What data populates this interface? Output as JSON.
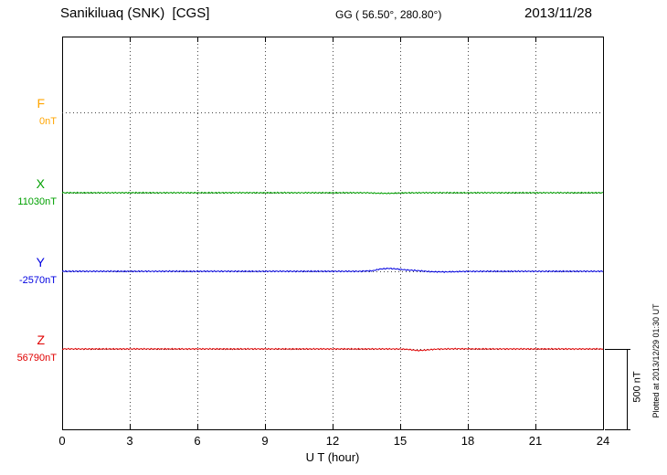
{
  "header": {
    "station_title": "Sanikiluaq (SNK)  [CGS]",
    "coords_label": "GG ( 56.50°, 280.80°)",
    "date": "2013/11/28"
  },
  "axes": {
    "x_label": "U T (hour)",
    "x_ticks": [
      0,
      3,
      6,
      9,
      12,
      15,
      18,
      21,
      24
    ]
  },
  "scale_bar": {
    "label": "500 nT",
    "value_nT": 500
  },
  "footer_note": "Plotted at 2013/12/29 01:30 UT",
  "chart_data": {
    "type": "line",
    "title": "Sanikiluaq (SNK) [CGS] magnetogram",
    "date": "2013/11/28",
    "xlabel": "U T (hour)",
    "x_range": [
      0,
      24
    ],
    "x_ticks": [
      0,
      3,
      6,
      9,
      12,
      15,
      18,
      21,
      24
    ],
    "scale_division_nT": 500,
    "grid": "dotted vertical lines every 3 hours, dotted horizontal baseline per trace",
    "series": [
      {
        "name": "F",
        "color": "#ffa500",
        "baseline_label": "0nT",
        "baseline_nT": 0,
        "trace_visible": false,
        "points": [
          [
            0,
            0
          ],
          [
            24,
            0
          ]
        ]
      },
      {
        "name": "X",
        "color": "#00a000",
        "baseline_label": "11030nT",
        "baseline_nT": 11030,
        "trace_visible": true,
        "points": [
          [
            0,
            11030
          ],
          [
            13.5,
            11030
          ],
          [
            14.0,
            11027
          ],
          [
            14.5,
            11026
          ],
          [
            15.0,
            11029
          ],
          [
            16.0,
            11030
          ],
          [
            24,
            11030
          ]
        ]
      },
      {
        "name": "Y",
        "color": "#0000e0",
        "baseline_label": "-2570nT",
        "baseline_nT": -2570,
        "trace_visible": true,
        "points": [
          [
            0,
            -2570
          ],
          [
            13.2,
            -2570
          ],
          [
            13.8,
            -2566
          ],
          [
            14.1,
            -2556
          ],
          [
            14.5,
            -2552
          ],
          [
            14.9,
            -2556
          ],
          [
            15.3,
            -2562
          ],
          [
            15.8,
            -2566
          ],
          [
            16.3,
            -2572
          ],
          [
            17.0,
            -2574
          ],
          [
            17.8,
            -2571
          ],
          [
            19.0,
            -2570
          ],
          [
            24,
            -2570
          ]
        ]
      },
      {
        "name": "Z",
        "color": "#e00000",
        "baseline_label": "56790nT",
        "baseline_nT": 56790,
        "trace_visible": true,
        "points": [
          [
            0,
            56790
          ],
          [
            14.8,
            56790
          ],
          [
            15.3,
            56788
          ],
          [
            15.8,
            56780
          ],
          [
            16.2,
            56784
          ],
          [
            16.6,
            56789
          ],
          [
            17.5,
            56791
          ],
          [
            18.5,
            56790
          ],
          [
            24,
            56790
          ]
        ]
      }
    ]
  }
}
